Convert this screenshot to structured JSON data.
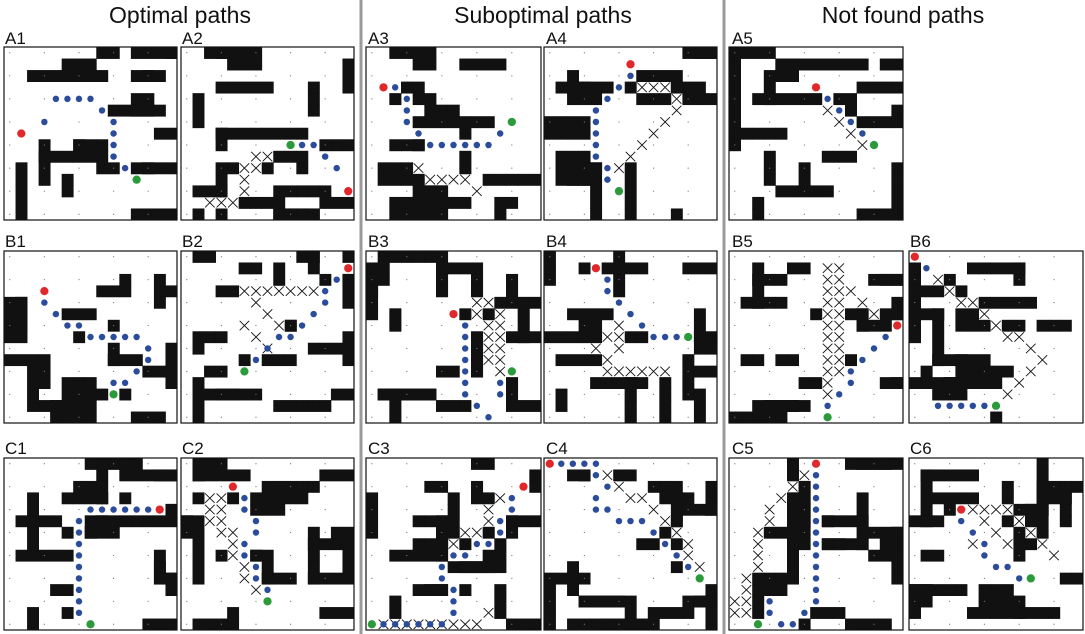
{
  "figure": {
    "columns": [
      {
        "title": "Optimal paths"
      },
      {
        "title": "Suboptimal paths"
      },
      {
        "title": "Not found paths"
      }
    ],
    "legend_colors": {
      "wall": "#111111",
      "path": "#2b4c9a",
      "start": "#e0282a",
      "goal": "#2a9a3a",
      "explored": "#111111",
      "divider": "#9a9a9a"
    },
    "panels": [
      {
        "label": "A1"
      },
      {
        "label": "A2"
      },
      {
        "label": "A3"
      },
      {
        "label": "A4"
      },
      {
        "label": "A5"
      },
      {
        "label": "B1"
      },
      {
        "label": "B2"
      },
      {
        "label": "B3"
      },
      {
        "label": "B4"
      },
      {
        "label": "B5"
      },
      {
        "label": "B6"
      },
      {
        "label": "C1"
      },
      {
        "label": "C2"
      },
      {
        "label": "C3"
      },
      {
        "label": "C4"
      },
      {
        "label": "C5"
      },
      {
        "label": "C6"
      }
    ]
  }
}
